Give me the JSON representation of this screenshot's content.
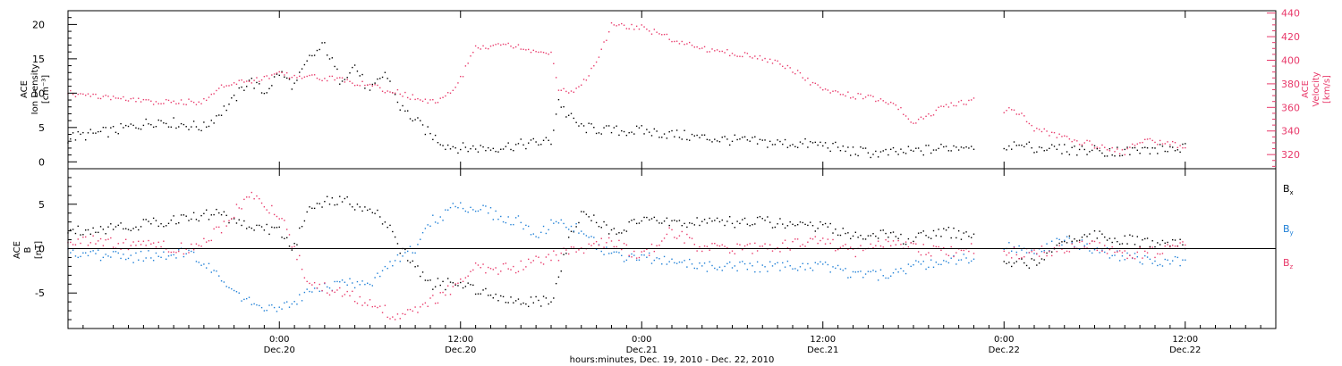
{
  "chart_data": [
    {
      "type": "scatter",
      "title": "",
      "xlabel": "hours:minutes, Dec. 19, 2010 - Dec. 22, 2010",
      "x_ticks": [
        {
          "time": "0:00",
          "date": "Dec.20"
        },
        {
          "time": "12:00",
          "date": "Dec.20"
        },
        {
          "time": "0:00",
          "date": "Dec.21"
        },
        {
          "time": "12:00",
          "date": "Dec.21"
        },
        {
          "time": "0:00",
          "date": "Dec.22"
        },
        {
          "time": "12:00",
          "date": "Dec.22"
        }
      ],
      "xlim": [
        "2010-12-19 10:00",
        "2010-12-22 18:00"
      ],
      "ylabel_left": [
        "ACE",
        "Ion Density",
        "[cm⁻³]"
      ],
      "ylim_left": [
        -1,
        22
      ],
      "yticks_left": [
        "0",
        "5",
        "10",
        "15",
        "20"
      ],
      "ylabel_right": [
        "ACE",
        "Velocity",
        "[km/s]"
      ],
      "ylim_right": [
        308,
        442
      ],
      "yticks_right": [
        "320",
        "340",
        "360",
        "380",
        "400",
        "420",
        "440"
      ],
      "series": [
        {
          "key": "density",
          "axis": "left",
          "color": "#000000",
          "segments": [
            [
              [
                "2010-12-19 10:00",
                3.5
              ],
              [
                "2010-12-19 13:00",
                4.5
              ],
              [
                "2010-12-19 16:00",
                6
              ],
              [
                "2010-12-19 19:00",
                5
              ],
              [
                "2010-12-19 20:00",
                7
              ],
              [
                "2010-12-19 21:00",
                9
              ],
              [
                "2010-12-19 22:00",
                12
              ],
              [
                "2010-12-19 23:00",
                10
              ],
              [
                "2010-12-20 00:00",
                13
              ],
              [
                "2010-12-20 01:00",
                11
              ],
              [
                "2010-12-20 02:00",
                15
              ],
              [
                "2010-12-20 03:00",
                17
              ],
              [
                "2010-12-20 04:00",
                12
              ],
              [
                "2010-12-20 05:00",
                14
              ],
              [
                "2010-12-20 06:00",
                10
              ],
              [
                "2010-12-20 07:00",
                13
              ],
              [
                "2010-12-20 08:00",
                8
              ],
              [
                "2010-12-20 09:00",
                6
              ],
              [
                "2010-12-20 10:00",
                4
              ],
              [
                "2010-12-20 11:00",
                2.5
              ],
              [
                "2010-12-20 12:00",
                2
              ],
              [
                "2010-12-20 13:00",
                2
              ],
              [
                "2010-12-20 14:00",
                2
              ],
              [
                "2010-12-20 16:00",
                2.5
              ],
              [
                "2010-12-20 18:00",
                3
              ],
              [
                "2010-12-20 18:30",
                9
              ],
              [
                "2010-12-20 19:00",
                7
              ],
              [
                "2010-12-20 20:00",
                5
              ],
              [
                "2010-12-20 22:00",
                4.5
              ],
              [
                "2010-12-21 00:00",
                4.5
              ],
              [
                "2010-12-21 04:00",
                3.5
              ],
              [
                "2010-12-21 08:00",
                2.8
              ],
              [
                "2010-12-21 12:00",
                2.5
              ],
              [
                "2010-12-21 14:00",
                1.5
              ],
              [
                "2010-12-21 16:00",
                1.2
              ],
              [
                "2010-12-21 18:00",
                1.5
              ],
              [
                "2010-12-21 20:00",
                2
              ],
              [
                "2010-12-21 22:00",
                2.5
              ]
            ],
            [
              [
                "2010-12-22 00:00",
                2.5
              ],
              [
                "2010-12-22 04:00",
                1.8
              ],
              [
                "2010-12-22 08:00",
                1.5
              ],
              [
                "2010-12-22 10:00",
                1.8
              ],
              [
                "2010-12-22 12:00",
                2
              ]
            ]
          ]
        },
        {
          "key": "velocity",
          "axis": "right",
          "color": "#e8396a",
          "segments": [
            [
              [
                "2010-12-19 10:00",
                372
              ],
              [
                "2010-12-19 13:00",
                368
              ],
              [
                "2010-12-19 16:00",
                364
              ],
              [
                "2010-12-19 19:00",
                365
              ],
              [
                "2010-12-19 20:00",
                378
              ],
              [
                "2010-12-19 22:00",
                382
              ],
              [
                "2010-12-20 00:00",
                388
              ],
              [
                "2010-12-20 02:00",
                386
              ],
              [
                "2010-12-20 04:00",
                384
              ],
              [
                "2010-12-20 06:00",
                378
              ],
              [
                "2010-12-20 08:00",
                372
              ],
              [
                "2010-12-20 10:00",
                364
              ],
              [
                "2010-12-20 11:00",
                368
              ],
              [
                "2010-12-20 12:00",
                384
              ],
              [
                "2010-12-20 13:00",
                410
              ],
              [
                "2010-12-20 15:00",
                415
              ],
              [
                "2010-12-20 16:00",
                410
              ],
              [
                "2010-12-20 18:00",
                405
              ],
              [
                "2010-12-20 18:30",
                375
              ],
              [
                "2010-12-20 19:30",
                372
              ],
              [
                "2010-12-20 21:00",
                396
              ],
              [
                "2010-12-20 22:00",
                430
              ],
              [
                "2010-12-21 00:00",
                428
              ],
              [
                "2010-12-21 02:00",
                418
              ],
              [
                "2010-12-21 04:00",
                410
              ],
              [
                "2010-12-21 06:00",
                406
              ],
              [
                "2010-12-21 08:00",
                402
              ],
              [
                "2010-12-21 10:00",
                392
              ],
              [
                "2010-12-21 12:00",
                374
              ],
              [
                "2010-12-21 14:00",
                370
              ],
              [
                "2010-12-21 16:00",
                366
              ],
              [
                "2010-12-21 17:00",
                360
              ],
              [
                "2010-12-21 18:00",
                346
              ],
              [
                "2010-12-21 19:00",
                354
              ],
              [
                "2010-12-21 20:00",
                360
              ],
              [
                "2010-12-21 22:00",
                366
              ]
            ],
            [
              [
                "2010-12-22 00:00",
                358
              ],
              [
                "2010-12-22 01:00",
                356
              ],
              [
                "2010-12-22 02:00",
                342
              ],
              [
                "2010-12-22 04:00",
                334
              ],
              [
                "2010-12-22 06:00",
                328
              ],
              [
                "2010-12-22 08:00",
                322
              ],
              [
                "2010-12-22 09:00",
                332
              ],
              [
                "2010-12-22 11:00",
                330
              ],
              [
                "2010-12-22 12:00",
                326
              ]
            ]
          ]
        }
      ]
    },
    {
      "type": "scatter",
      "title": "",
      "ylabel": [
        "ACE",
        "B",
        "[nT]"
      ],
      "ylim": [
        -9,
        9
      ],
      "yticks": [
        "-5",
        "0",
        "5"
      ],
      "zero_line": true,
      "legend_position": "right",
      "series": [
        {
          "name": "B",
          "sub": "x",
          "color": "#000000",
          "segments": [
            [
              [
                "2010-12-19 10:00",
                2
              ],
              [
                "2010-12-19 14:00",
                2.5
              ],
              [
                "2010-12-19 18:00",
                3.5
              ],
              [
                "2010-12-19 20:00",
                4
              ],
              [
                "2010-12-19 22:00",
                2.5
              ],
              [
                "2010-12-20 00:00",
                2
              ],
              [
                "2010-12-20 01:00",
                0
              ],
              [
                "2010-12-20 02:00",
                5
              ],
              [
                "2010-12-20 04:00",
                5.5
              ],
              [
                "2010-12-20 06:00",
                4.5
              ],
              [
                "2010-12-20 07:00",
                3
              ],
              [
                "2010-12-20 08:00",
                0
              ],
              [
                "2010-12-20 09:00",
                -2
              ],
              [
                "2010-12-20 10:00",
                -4
              ],
              [
                "2010-12-20 12:00",
                -4
              ],
              [
                "2010-12-20 14:00",
                -5
              ],
              [
                "2010-12-20 16:00",
                -6
              ],
              [
                "2010-12-20 18:00",
                -6
              ],
              [
                "2010-12-20 19:00",
                0
              ],
              [
                "2010-12-20 20:00",
                4
              ],
              [
                "2010-12-20 22:00",
                2
              ],
              [
                "2010-12-21 00:00",
                3
              ],
              [
                "2010-12-21 04:00",
                3
              ],
              [
                "2010-12-21 08:00",
                3
              ],
              [
                "2010-12-21 12:00",
                2.5
              ],
              [
                "2010-12-21 14:00",
                1.5
              ],
              [
                "2010-12-21 16:00",
                1.5
              ],
              [
                "2010-12-21 18:00",
                1
              ],
              [
                "2010-12-21 20:00",
                2
              ],
              [
                "2010-12-21 22:00",
                1
              ]
            ],
            [
              [
                "2010-12-22 00:00",
                -2
              ],
              [
                "2010-12-22 02:00",
                -1.5
              ],
              [
                "2010-12-22 04:00",
                1
              ],
              [
                "2010-12-22 06:00",
                1.5
              ],
              [
                "2010-12-22 08:00",
                1
              ],
              [
                "2010-12-22 10:00",
                0.5
              ],
              [
                "2010-12-22 12:00",
                0.5
              ]
            ]
          ]
        },
        {
          "name": "B",
          "sub": "y",
          "color": "#1e7fd6",
          "segments": [
            [
              [
                "2010-12-19 10:00",
                -0.5
              ],
              [
                "2010-12-19 14:00",
                -1
              ],
              [
                "2010-12-19 18:00",
                -0.5
              ],
              [
                "2010-12-19 20:00",
                -3
              ],
              [
                "2010-12-19 22:00",
                -6
              ],
              [
                "2010-12-20 00:00",
                -7
              ],
              [
                "2010-12-20 02:00",
                -5
              ],
              [
                "2010-12-20 04:00",
                -4
              ],
              [
                "2010-12-20 06:00",
                -4
              ],
              [
                "2010-12-20 07:00",
                -2
              ],
              [
                "2010-12-20 08:00",
                -1
              ],
              [
                "2010-12-20 09:00",
                0
              ],
              [
                "2010-12-20 10:00",
                3
              ],
              [
                "2010-12-20 12:00",
                5
              ],
              [
                "2010-12-20 14:00",
                4
              ],
              [
                "2010-12-20 16:00",
                3
              ],
              [
                "2010-12-20 17:00",
                1
              ],
              [
                "2010-12-20 18:00",
                3
              ],
              [
                "2010-12-20 20:00",
                2
              ],
              [
                "2010-12-20 22:00",
                -1
              ],
              [
                "2010-12-21 00:00",
                -1
              ],
              [
                "2010-12-21 04:00",
                -2
              ],
              [
                "2010-12-21 08:00",
                -2
              ],
              [
                "2010-12-21 12:00",
                -2
              ],
              [
                "2010-12-21 14:00",
                -3
              ],
              [
                "2010-12-21 16:00",
                -3
              ],
              [
                "2010-12-21 18:00",
                -2
              ],
              [
                "2010-12-21 20:00",
                -1.5
              ],
              [
                "2010-12-21 22:00",
                -1
              ]
            ],
            [
              [
                "2010-12-22 00:00",
                0.5
              ],
              [
                "2010-12-22 02:00",
                -0.5
              ],
              [
                "2010-12-22 04:00",
                1
              ],
              [
                "2010-12-22 06:00",
                0
              ],
              [
                "2010-12-22 08:00",
                -1
              ],
              [
                "2010-12-22 10:00",
                -1.5
              ],
              [
                "2010-12-22 12:00",
                -1.5
              ]
            ]
          ]
        },
        {
          "name": "B",
          "sub": "z",
          "color": "#e8396a",
          "segments": [
            [
              [
                "2010-12-19 10:00",
                1
              ],
              [
                "2010-12-19 14:00",
                0.5
              ],
              [
                "2010-12-19 18:00",
                0
              ],
              [
                "2010-12-19 20:00",
                2
              ],
              [
                "2010-12-19 22:00",
                6
              ],
              [
                "2010-12-20 00:00",
                4
              ],
              [
                "2010-12-20 02:00",
                -4
              ],
              [
                "2010-12-20 04:00",
                -5
              ],
              [
                "2010-12-20 06:00",
                -6
              ],
              [
                "2010-12-20 07:00",
                -7
              ],
              [
                "2010-12-20 08:00",
                -8
              ],
              [
                "2010-12-20 09:00",
                -7
              ],
              [
                "2010-12-20 10:00",
                -6
              ],
              [
                "2010-12-20 12:00",
                -4
              ],
              [
                "2010-12-20 13:00",
                -2
              ],
              [
                "2010-12-20 14:00",
                -2.5
              ],
              [
                "2010-12-20 16:00",
                -2
              ],
              [
                "2010-12-20 18:00",
                -1
              ],
              [
                "2010-12-20 20:00",
                0
              ],
              [
                "2010-12-20 22:00",
                1
              ],
              [
                "2010-12-21 00:00",
                -1
              ],
              [
                "2010-12-21 02:00",
                2
              ],
              [
                "2010-12-21 04:00",
                0
              ],
              [
                "2010-12-21 08:00",
                0
              ],
              [
                "2010-12-21 12:00",
                1
              ],
              [
                "2010-12-21 14:00",
                -0.5
              ],
              [
                "2010-12-21 16:00",
                0.5
              ],
              [
                "2010-12-21 18:00",
                0
              ],
              [
                "2010-12-21 20:00",
                -0.5
              ],
              [
                "2010-12-21 22:00",
                0
              ]
            ],
            [
              [
                "2010-12-22 00:00",
                -0.5
              ],
              [
                "2010-12-22 02:00",
                -0.5
              ],
              [
                "2010-12-22 04:00",
                0
              ],
              [
                "2010-12-22 06:00",
                0.5
              ],
              [
                "2010-12-22 08:00",
                -0.5
              ],
              [
                "2010-12-22 10:00",
                -0.5
              ],
              [
                "2010-12-22 12:00",
                1
              ]
            ]
          ]
        }
      ]
    }
  ]
}
